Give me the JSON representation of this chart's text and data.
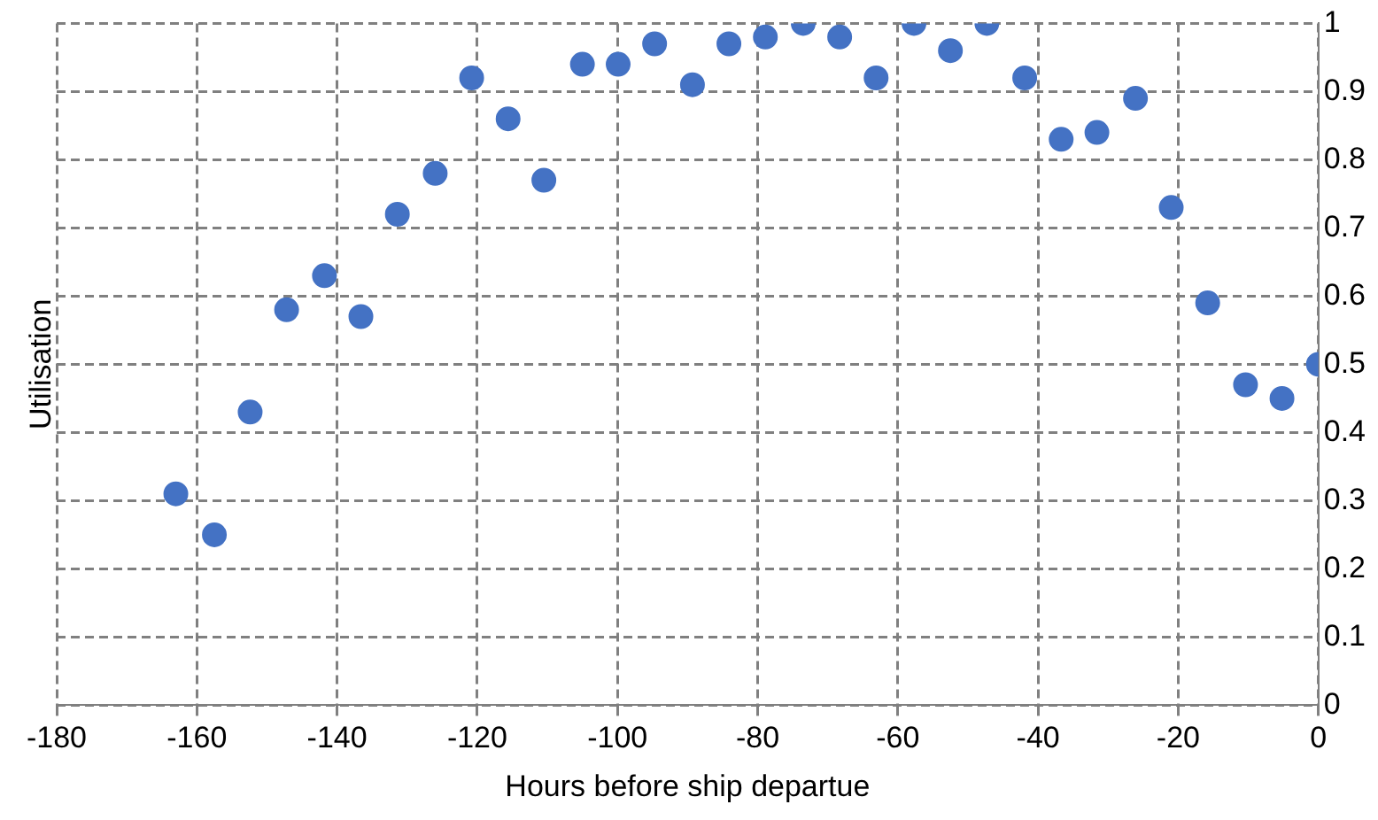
{
  "chart_data": {
    "type": "scatter",
    "xlabel": "Hours before ship departue",
    "ylabel": "Utilisation",
    "xlim": [
      -180,
      0
    ],
    "xticks": [
      -180,
      -160,
      -140,
      -120,
      -100,
      -80,
      -60,
      -40,
      -20,
      0
    ],
    "ylim": [
      0,
      1
    ],
    "yticks": [
      0,
      0.1,
      0.2,
      0.3,
      0.4,
      0.5,
      0.6,
      0.7,
      0.8,
      0.9,
      1
    ],
    "grid": true,
    "marker": "circle",
    "legend": false,
    "series": [
      {
        "color": "#4472c4",
        "x": [
          -163,
          -157.5,
          -152.4,
          -147.2,
          -141.8,
          -136.6,
          -131.4,
          -126,
          -120.8,
          -115.6,
          -110.5,
          -105,
          -99.9,
          -94.7,
          -89.3,
          -84.1,
          -78.9,
          -73.5,
          -68.3,
          -63.1,
          -57.7,
          -52.5,
          -47.3,
          -41.9,
          -36.7,
          -31.6,
          -26.1,
          -21,
          -15.8,
          -10.4,
          -5.2,
          0
        ],
        "values": [
          0.31,
          0.25,
          0.43,
          0.58,
          0.63,
          0.57,
          0.72,
          0.78,
          0.92,
          0.86,
          0.77,
          0.94,
          0.94,
          0.97,
          0.91,
          0.97,
          0.98,
          1.0,
          0.98,
          0.92,
          1.0,
          0.96,
          1.0,
          0.92,
          0.83,
          0.84,
          0.89,
          0.73,
          0.59,
          0.47,
          0.45,
          0.5
        ]
      }
    ]
  }
}
